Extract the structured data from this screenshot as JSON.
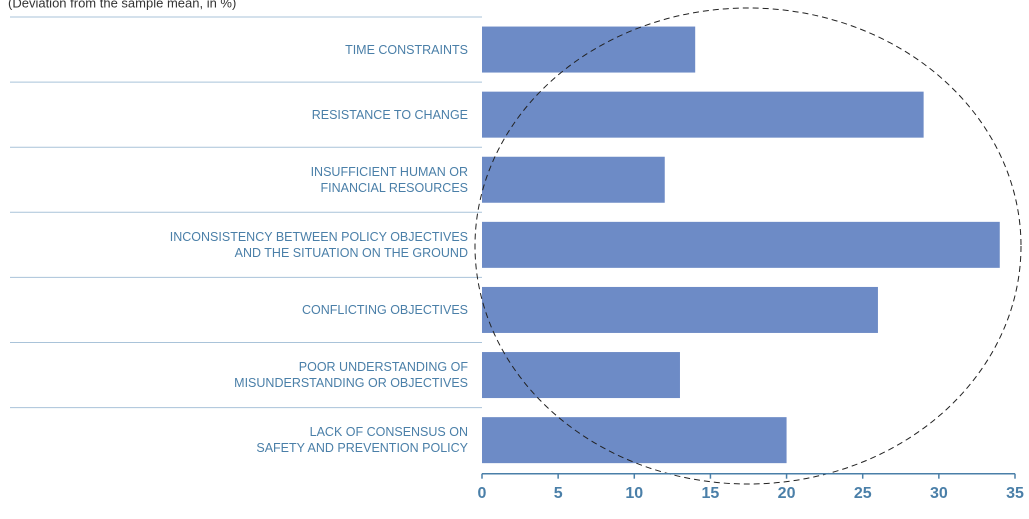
{
  "chart_data": {
    "type": "bar",
    "subtitle": "(Deviation from the sample mean, in %)",
    "categories": [
      "TIME CONSTRAINTS",
      "RESISTANCE TO CHANGE",
      "INSUFFICIENT HUMAN OR\nFINANCIAL RESOURCES",
      "INCONSISTENCY BETWEEN POLICY OBJECTIVES\nAND THE SITUATION ON THE GROUND",
      "CONFLICTING OBJECTIVES",
      "POOR UNDERSTANDING OF\nMISUNDERSTANDING OR OBJECTIVES",
      "LACK OF CONSENSUS ON\nSAFETY AND PREVENTION POLICY"
    ],
    "values": [
      14,
      29,
      12,
      34,
      26,
      13,
      20
    ],
    "color": "#6d8bc6",
    "orientation": "horizontal",
    "xlim": [
      0,
      35
    ],
    "xticks": [
      0,
      5,
      10,
      15,
      20,
      25,
      30,
      35
    ]
  }
}
